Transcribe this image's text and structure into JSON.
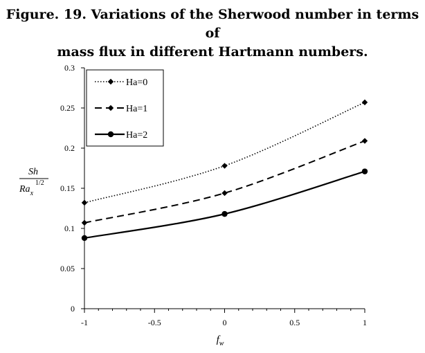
{
  "figure": {
    "title_line1": "Figure. 19. Variations of the Sherwood number in terms of",
    "title_line2": "mass flux in different Hartmann numbers."
  },
  "chart_data": {
    "type": "line",
    "x": [
      -1,
      0,
      1
    ],
    "series": [
      {
        "name": "Ha=0",
        "values": [
          0.132,
          0.178,
          0.257
        ],
        "style": "dotted",
        "marker": "diamond"
      },
      {
        "name": "Ha=1",
        "values": [
          0.107,
          0.144,
          0.209
        ],
        "style": "dashed",
        "marker": "diamond"
      },
      {
        "name": "Ha=2",
        "values": [
          0.088,
          0.118,
          0.171
        ],
        "style": "solid",
        "marker": "circle"
      }
    ],
    "xlim": [
      -1,
      1
    ],
    "ylim": [
      0,
      0.3
    ],
    "xticks": [
      "-1",
      "-0.5",
      "0",
      "0.5",
      "1"
    ],
    "yticks": [
      "0",
      "0.05",
      "0.1",
      "0.15",
      "0.2",
      "0.25",
      "0.3"
    ],
    "xlabel": "f",
    "xlabel_sub": "w",
    "ylabel_num": "Sh",
    "ylabel_den": "Ra",
    "ylabel_den_sub": "x",
    "ylabel_den_sup": "1/2",
    "legend_position": "top-left",
    "grid": false,
    "color": "#000000"
  }
}
